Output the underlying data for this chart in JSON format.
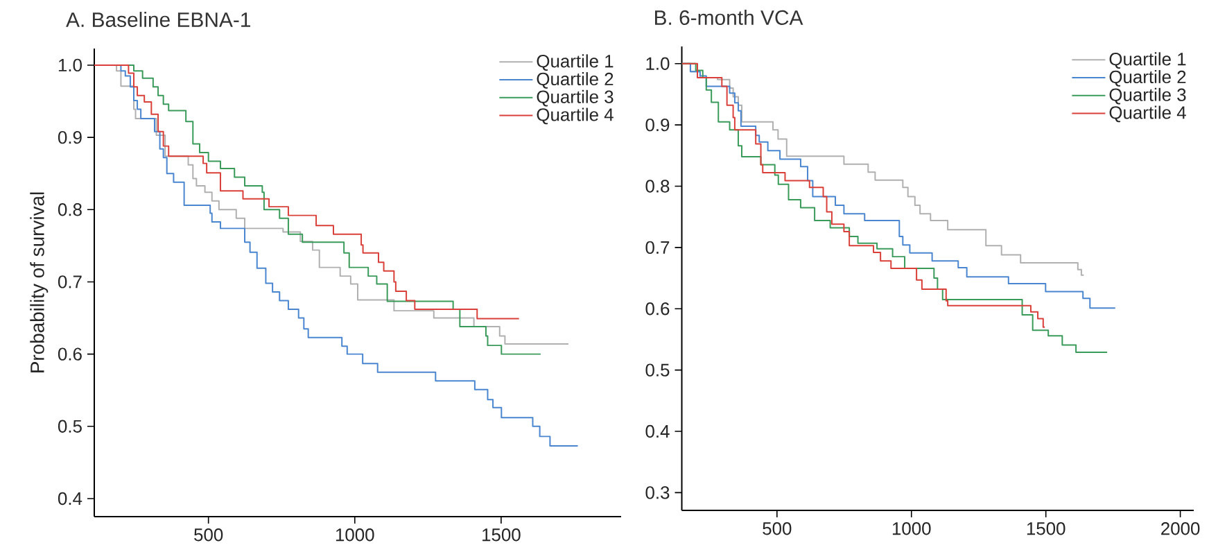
{
  "chart_data": [
    {
      "type": "step",
      "title": "A. Baseline EBNA-1",
      "ylabel": "Probability of survival",
      "xlim": [
        110,
        1910
      ],
      "ylim": [
        0.375,
        1.023
      ],
      "xticks": [
        500,
        1000,
        1500
      ],
      "yticks": [
        0.4,
        0.5,
        0.6,
        0.7,
        0.8,
        0.9,
        {
          "value": 1,
          "label": "1.0"
        }
      ],
      "legend": "top right",
      "series": [
        {
          "name": "Quartile 1",
          "color": "#b0b0b0",
          "x": [
            110,
            186,
            201,
            245,
            251,
            322,
            352,
            431,
            447,
            459,
            488,
            512,
            536,
            595,
            624,
            755,
            814,
            856,
            879,
            950,
            986,
            1010,
            1134,
            1270,
            1407,
            1495,
            1513,
            1730
          ],
          "values": [
            1.0,
            0.992,
            0.971,
            0.939,
            0.926,
            0.903,
            0.874,
            0.862,
            0.843,
            0.833,
            0.824,
            0.812,
            0.8,
            0.788,
            0.774,
            0.769,
            0.756,
            0.744,
            0.72,
            0.708,
            0.697,
            0.675,
            0.66,
            0.65,
            0.638,
            0.625,
            0.614,
            0.614
          ]
        },
        {
          "name": "Quartile 2",
          "color": "#4a86d0",
          "x": [
            110,
            201,
            216,
            233,
            245,
            257,
            269,
            316,
            334,
            346,
            358,
            381,
            417,
            506,
            512,
            541,
            624,
            642,
            666,
            696,
            719,
            743,
            773,
            808,
            826,
            841,
            956,
            974,
            1027,
            1078,
            1276,
            1410,
            1454,
            1472,
            1501,
            1608,
            1632,
            1667,
            1762
          ],
          "values": [
            1.0,
            0.992,
            0.985,
            0.97,
            0.951,
            0.939,
            0.926,
            0.908,
            0.884,
            0.872,
            0.85,
            0.838,
            0.806,
            0.795,
            0.783,
            0.774,
            0.755,
            0.741,
            0.719,
            0.698,
            0.686,
            0.674,
            0.662,
            0.65,
            0.635,
            0.623,
            0.611,
            0.6,
            0.587,
            0.575,
            0.563,
            0.551,
            0.537,
            0.526,
            0.512,
            0.5,
            0.486,
            0.473,
            0.473
          ]
        },
        {
          "name": "Quartile 3",
          "color": "#3a9a5a",
          "x": [
            110,
            245,
            275,
            311,
            328,
            346,
            364,
            423,
            447,
            470,
            500,
            541,
            589,
            624,
            684,
            690,
            743,
            773,
            821,
            963,
            981,
            1046,
            1075,
            1111,
            1336,
            1359,
            1448,
            1454,
            1501,
            1635
          ],
          "values": [
            1.0,
            0.992,
            0.982,
            0.97,
            0.958,
            0.946,
            0.937,
            0.922,
            0.891,
            0.879,
            0.867,
            0.857,
            0.845,
            0.833,
            0.824,
            0.8,
            0.788,
            0.766,
            0.755,
            0.74,
            0.72,
            0.708,
            0.697,
            0.673,
            0.662,
            0.638,
            0.625,
            0.612,
            0.6,
            0.6
          ]
        },
        {
          "name": "Quartile 4",
          "color": "#d9403a",
          "x": [
            110,
            227,
            245,
            257,
            281,
            305,
            328,
            346,
            364,
            482,
            494,
            541,
            618,
            707,
            773,
            868,
            927,
            1022,
            1028,
            1081,
            1099,
            1134,
            1140,
            1176,
            1205,
            1418,
            1561
          ],
          "values": [
            1.0,
            0.989,
            0.97,
            0.958,
            0.949,
            0.932,
            0.908,
            0.888,
            0.874,
            0.864,
            0.851,
            0.826,
            0.815,
            0.804,
            0.792,
            0.778,
            0.766,
            0.751,
            0.74,
            0.727,
            0.715,
            0.7,
            0.687,
            0.674,
            0.662,
            0.649,
            0.649
          ]
        }
      ]
    },
    {
      "type": "step",
      "title": "B. 6-month VCA",
      "xlim": [
        146,
        2050
      ],
      "ylim": [
        0.271,
        1.028
      ],
      "xticks": [
        500,
        1000,
        1500,
        2000
      ],
      "yticks": [
        0.3,
        0.4,
        0.5,
        0.6,
        0.7,
        0.8,
        0.9,
        {
          "value": 1,
          "label": "1.0"
        }
      ],
      "legend": "top right",
      "series": [
        {
          "name": "Quartile 1",
          "color": "#b0b0b0",
          "x": [
            146,
            178,
            214,
            279,
            324,
            337,
            356,
            369,
            485,
            504,
            536,
            749,
            839,
            865,
            968,
            987,
            1013,
            1032,
            1071,
            1135,
            1277,
            1335,
            1406,
            1619,
            1632,
            1641
          ],
          "values": [
            1.0,
            0.987,
            0.977,
            0.974,
            0.96,
            0.946,
            0.932,
            0.905,
            0.892,
            0.877,
            0.849,
            0.836,
            0.823,
            0.81,
            0.798,
            0.783,
            0.769,
            0.755,
            0.744,
            0.729,
            0.703,
            0.688,
            0.675,
            0.664,
            0.655,
            0.655
          ]
        },
        {
          "name": "Quartile 2",
          "color": "#4a86d0",
          "x": [
            146,
            178,
            214,
            237,
            324,
            343,
            356,
            366,
            421,
            434,
            466,
            511,
            588,
            614,
            633,
            717,
            749,
            826,
            955,
            968,
            994,
            1077,
            1174,
            1206,
            1361,
            1499,
            1638,
            1664,
            1758
          ],
          "values": [
            1.0,
            0.987,
            0.98,
            0.963,
            0.952,
            0.936,
            0.923,
            0.898,
            0.883,
            0.872,
            0.858,
            0.844,
            0.832,
            0.809,
            0.783,
            0.769,
            0.755,
            0.744,
            0.718,
            0.704,
            0.691,
            0.678,
            0.667,
            0.652,
            0.641,
            0.628,
            0.617,
            0.601,
            0.601
          ]
        },
        {
          "name": "Quartile 3",
          "color": "#3a9a5a",
          "x": [
            146,
            198,
            224,
            237,
            256,
            282,
            324,
            356,
            369,
            440,
            492,
            505,
            543,
            588,
            640,
            698,
            769,
            801,
            872,
            930,
            975,
            1084,
            1097,
            1116,
            1412,
            1451,
            1509,
            1561,
            1612,
            1728
          ],
          "values": [
            1.0,
            0.989,
            0.977,
            0.957,
            0.937,
            0.905,
            0.892,
            0.866,
            0.848,
            0.835,
            0.818,
            0.803,
            0.778,
            0.765,
            0.744,
            0.732,
            0.718,
            0.707,
            0.698,
            0.685,
            0.666,
            0.65,
            0.632,
            0.615,
            0.59,
            0.565,
            0.556,
            0.541,
            0.529,
            0.529
          ]
        },
        {
          "name": "Quartile 4",
          "color": "#d9403a",
          "x": [
            146,
            204,
            295,
            314,
            337,
            343,
            421,
            440,
            447,
            530,
            621,
            672,
            685,
            704,
            749,
            769,
            859,
            885,
            924,
            1019,
            1039,
            1129,
            1135,
            1444,
            1470,
            1490,
            1496
          ],
          "values": [
            1.0,
            0.977,
            0.963,
            0.932,
            0.912,
            0.892,
            0.869,
            0.835,
            0.822,
            0.809,
            0.798,
            0.783,
            0.758,
            0.738,
            0.726,
            0.703,
            0.692,
            0.678,
            0.666,
            0.647,
            0.632,
            0.613,
            0.605,
            0.595,
            0.584,
            0.57,
            0.57
          ]
        }
      ]
    }
  ]
}
